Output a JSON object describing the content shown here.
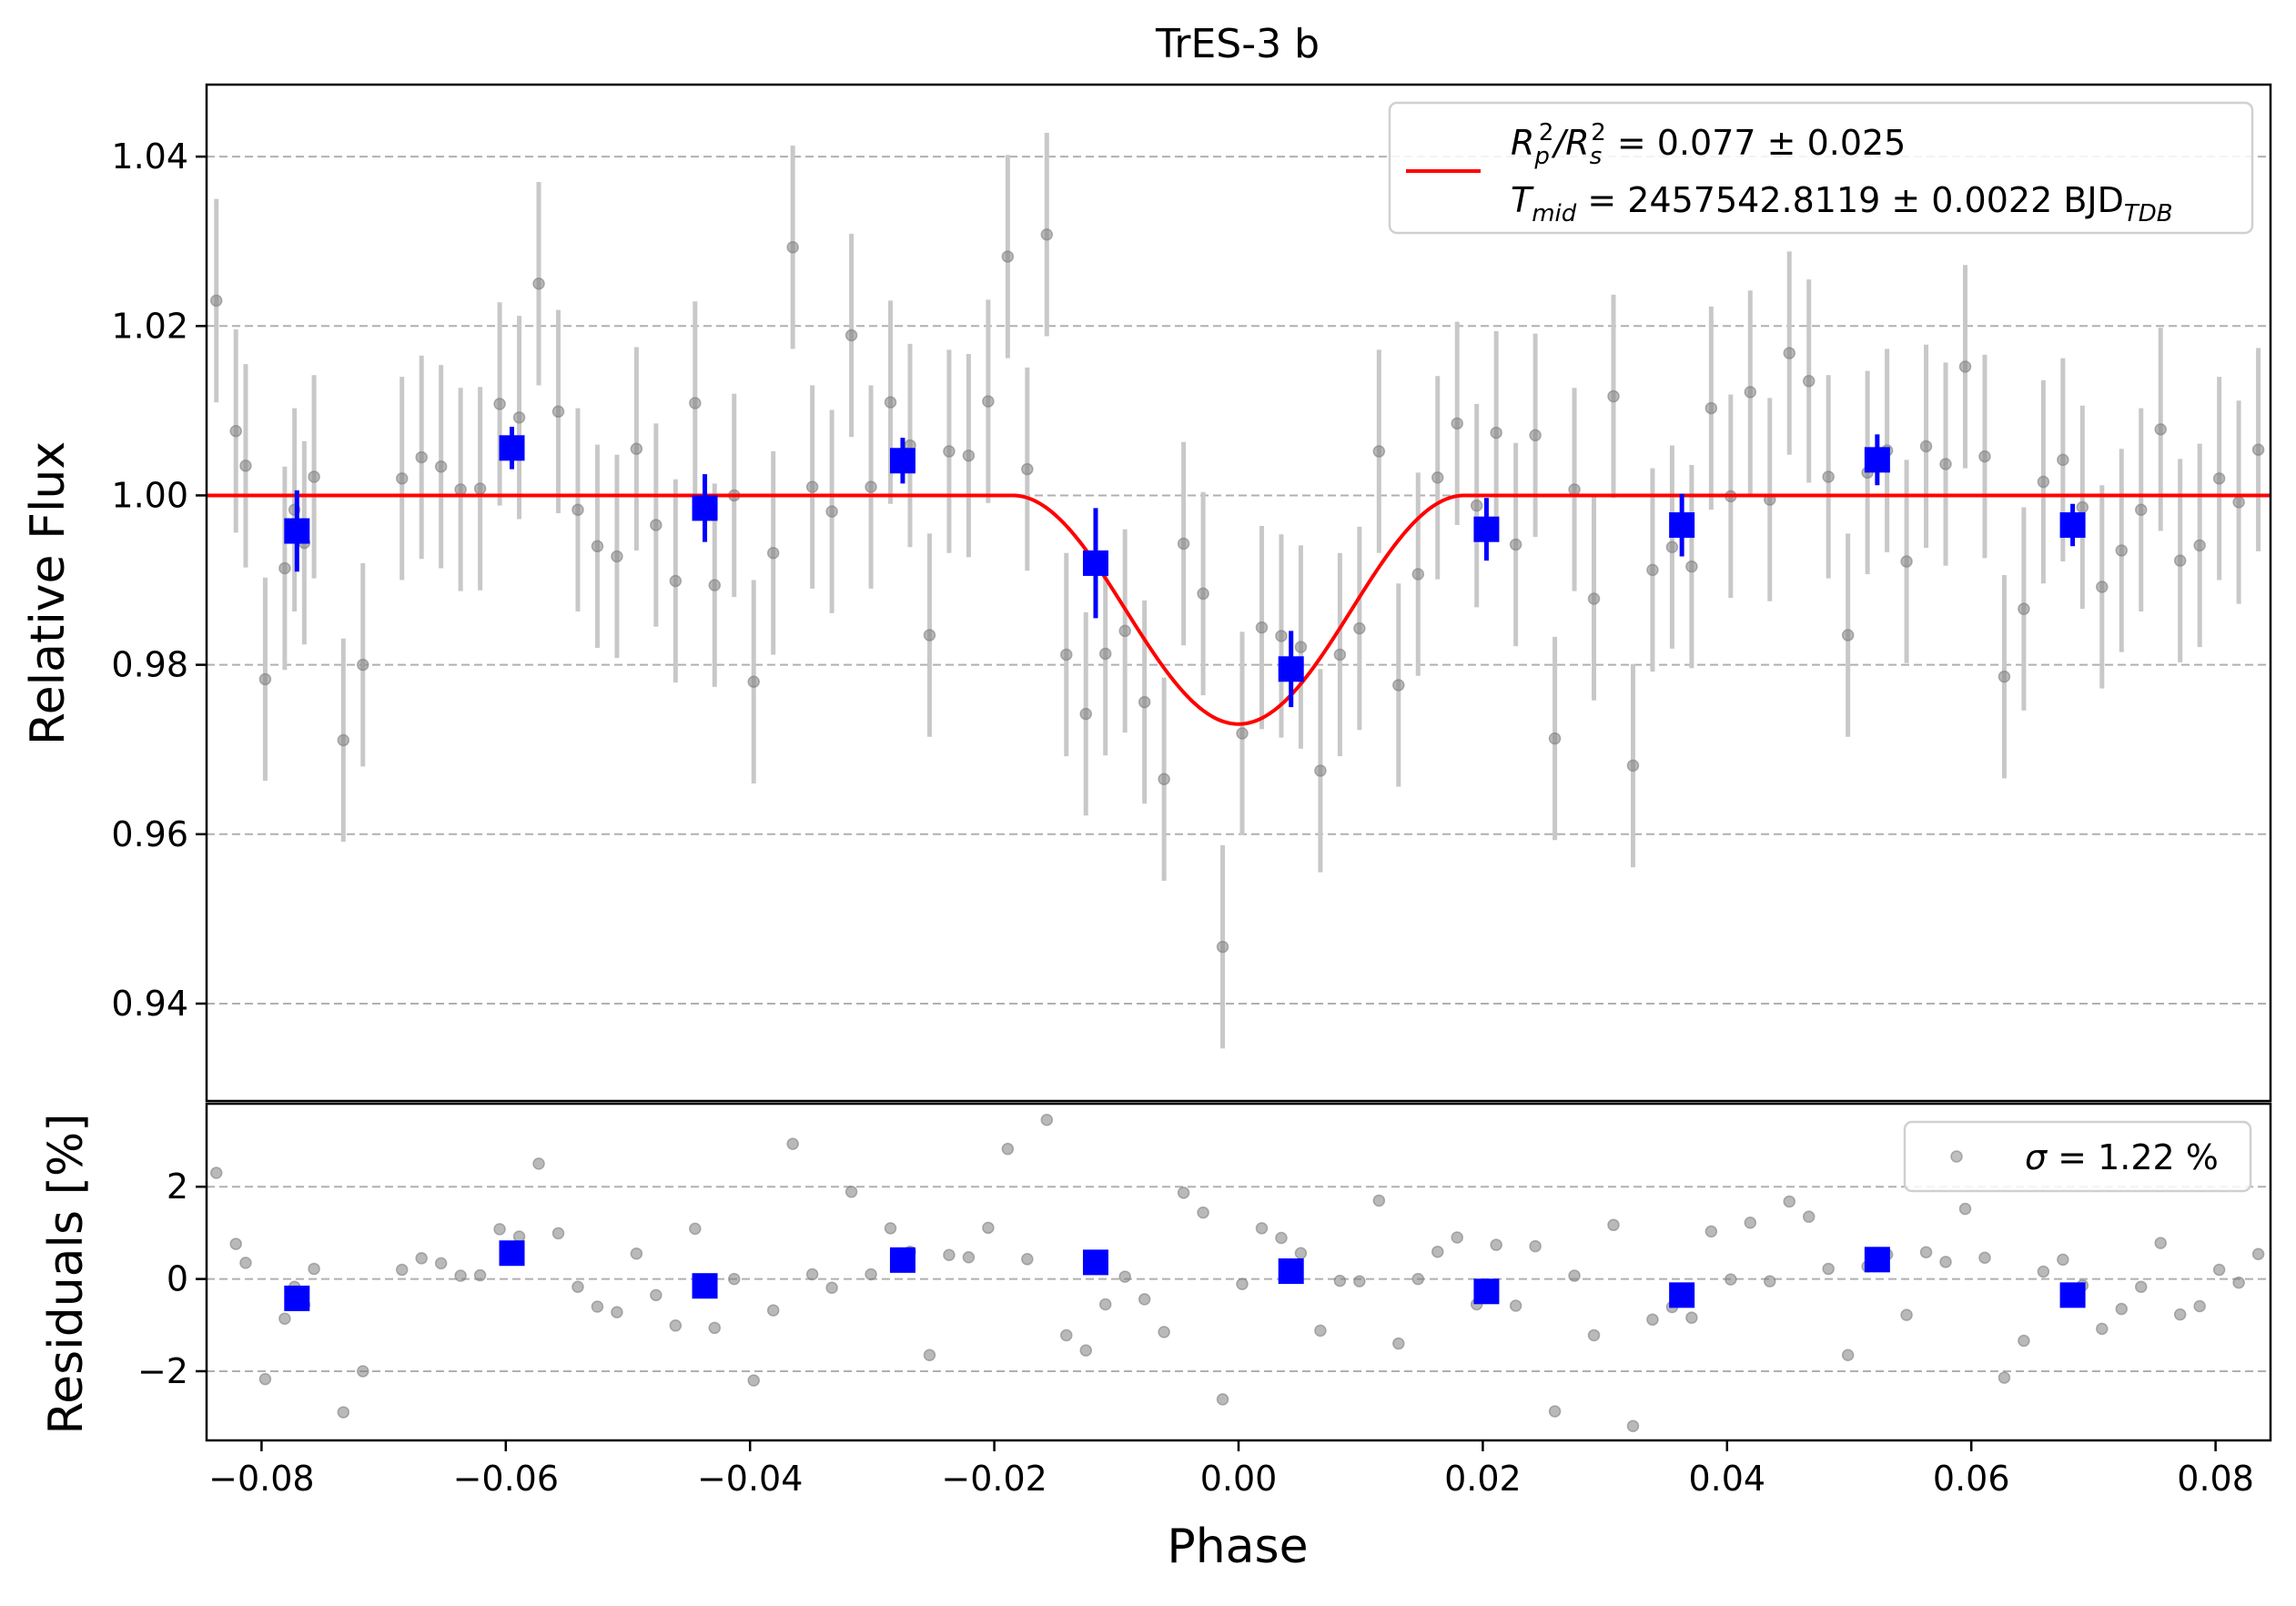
{
  "chart_data": [
    {
      "panel": "light-curve",
      "type": "scatter",
      "title": "TrES-3 b",
      "ylabel": "Relative Flux",
      "xlim": [
        -0.0845,
        0.0845
      ],
      "ylim": [
        0.9285,
        1.0485
      ],
      "grid": "horizontal dashed",
      "yticks": [
        0.94,
        0.96,
        0.98,
        1.0,
        1.02,
        1.04
      ],
      "ytick_labels": [
        "0.94",
        "0.96",
        "0.98",
        "1.00",
        "1.02",
        "1.04"
      ],
      "legend": {
        "placement": "upper-right",
        "line1": {
          "base": "R",
          "sub1": "p",
          "sup1": "2",
          "slash": "/R",
          "sub2": "s",
          "sup2": "2",
          "value": " = 0.077 ± 0.025"
        },
        "line2": {
          "base": "T",
          "sub": "mid",
          "value": " = 2457542.8119 ± 0.0022 BJD",
          "unit_sub": "TDB"
        }
      },
      "model": {
        "depth": 0.027,
        "half_duration": 0.0185,
        "color": "#ff0000"
      },
      "raw_points": [
        [
          -0.0837,
          1.023,
          0.012
        ],
        [
          -0.0821,
          1.0076,
          0.012
        ],
        [
          -0.0813,
          1.0035,
          0.012
        ],
        [
          -0.0797,
          0.9783,
          0.012
        ],
        [
          -0.0781,
          0.9914,
          0.012
        ],
        [
          -0.0773,
          0.9983,
          0.012
        ],
        [
          -0.0765,
          0.9944,
          0.012
        ],
        [
          -0.0757,
          1.0022,
          0.012
        ],
        [
          -0.0733,
          0.9711,
          0.012
        ],
        [
          -0.0717,
          0.98,
          0.012
        ],
        [
          -0.0685,
          1.002,
          0.012
        ],
        [
          -0.0669,
          1.0045,
          0.012
        ],
        [
          -0.0653,
          1.0034,
          0.012
        ],
        [
          -0.0637,
          1.0007,
          0.012
        ],
        [
          -0.0621,
          1.0008,
          0.012
        ],
        [
          -0.0605,
          1.0108,
          0.012
        ],
        [
          -0.0589,
          1.0092,
          0.012
        ],
        [
          -0.0573,
          1.025,
          0.012
        ],
        [
          -0.0557,
          1.0099,
          0.012
        ],
        [
          -0.0541,
          0.9983,
          0.012
        ],
        [
          -0.0525,
          0.994,
          0.012
        ],
        [
          -0.0509,
          0.9928,
          0.012
        ],
        [
          -0.0493,
          1.0055,
          0.012
        ],
        [
          -0.0477,
          0.9965,
          0.012
        ],
        [
          -0.0461,
          0.9899,
          0.012
        ],
        [
          -0.0445,
          1.0109,
          0.012
        ],
        [
          -0.0429,
          0.9894,
          0.012
        ],
        [
          -0.0413,
          1.0,
          0.012
        ],
        [
          -0.0397,
          0.978,
          0.012
        ],
        [
          -0.0381,
          0.9932,
          0.012
        ],
        [
          -0.0365,
          1.0293,
          0.012
        ],
        [
          -0.0349,
          1.001,
          0.012
        ],
        [
          -0.0333,
          0.9981,
          0.012
        ],
        [
          -0.0317,
          1.0189,
          0.012
        ],
        [
          -0.0301,
          1.001,
          0.012
        ],
        [
          -0.0285,
          1.011,
          0.012
        ],
        [
          -0.0269,
          1.0059,
          0.012
        ],
        [
          -0.0253,
          0.9835,
          0.012
        ],
        [
          -0.0237,
          1.0052,
          0.012
        ],
        [
          -0.0221,
          1.0047,
          0.012
        ],
        [
          -0.0205,
          1.0111,
          0.012
        ],
        [
          -0.0189,
          1.0282,
          0.012
        ],
        [
          -0.0173,
          1.0031,
          0.012
        ],
        [
          -0.0157,
          1.0308,
          0.012
        ],
        [
          -0.0141,
          0.9812,
          0.012
        ],
        [
          -0.0125,
          0.9742,
          0.012
        ],
        [
          -0.0109,
          0.9813,
          0.012
        ],
        [
          -0.0093,
          0.984,
          0.012
        ],
        [
          -0.0077,
          0.9756,
          0.012
        ],
        [
          -0.0061,
          0.9665,
          0.012
        ],
        [
          -0.0045,
          0.9943,
          0.012
        ],
        [
          -0.0029,
          0.9884,
          0.012
        ],
        [
          -0.0013,
          0.9467,
          0.012
        ],
        [
          0.0003,
          0.9719,
          0.012
        ],
        [
          0.0019,
          0.9844,
          0.012
        ],
        [
          0.0035,
          0.9834,
          0.012
        ],
        [
          0.0051,
          0.9821,
          0.012
        ],
        [
          0.0067,
          0.9675,
          0.012
        ],
        [
          0.0083,
          0.9812,
          0.012
        ],
        [
          0.0099,
          0.9843,
          0.012
        ],
        [
          0.0115,
          1.0052,
          0.012
        ],
        [
          0.0131,
          0.9776,
          0.012
        ],
        [
          0.0147,
          0.9907,
          0.012
        ],
        [
          0.0163,
          1.0021,
          0.012
        ],
        [
          0.0179,
          1.0085,
          0.012
        ],
        [
          0.0195,
          0.9988,
          0.012
        ],
        [
          0.0211,
          1.0074,
          0.012
        ],
        [
          0.0227,
          0.9942,
          0.012
        ],
        [
          0.0243,
          1.0071,
          0.012
        ],
        [
          0.0259,
          0.9713,
          0.012
        ],
        [
          0.0275,
          1.0007,
          0.012
        ],
        [
          0.0291,
          0.9878,
          0.012
        ],
        [
          0.0307,
          1.0117,
          0.012
        ],
        [
          0.0323,
          0.9681,
          0.012
        ],
        [
          0.0339,
          0.9912,
          0.012
        ],
        [
          0.0355,
          0.9939,
          0.012
        ],
        [
          0.0371,
          0.9916,
          0.012
        ],
        [
          0.0387,
          1.0103,
          0.012
        ],
        [
          0.0403,
          0.9999,
          0.012
        ],
        [
          0.0419,
          1.0122,
          0.012
        ],
        [
          0.0435,
          0.9995,
          0.012
        ],
        [
          0.0451,
          1.0168,
          0.012
        ],
        [
          0.0467,
          1.0135,
          0.012
        ],
        [
          0.0483,
          1.0022,
          0.012
        ],
        [
          0.0499,
          0.9835,
          0.012
        ],
        [
          0.0515,
          1.0027,
          0.012
        ],
        [
          0.0531,
          1.0053,
          0.012
        ],
        [
          0.0547,
          0.9922,
          0.012
        ],
        [
          0.0563,
          1.0058,
          0.012
        ],
        [
          0.0579,
          1.0037,
          0.012
        ],
        [
          0.0595,
          1.0152,
          0.012
        ],
        [
          0.0611,
          1.0046,
          0.012
        ],
        [
          0.0627,
          0.9786,
          0.012
        ],
        [
          0.0643,
          0.9866,
          0.012
        ],
        [
          0.0659,
          1.0016,
          0.012
        ],
        [
          0.0675,
          1.0042,
          0.012
        ],
        [
          0.0691,
          0.9986,
          0.012
        ],
        [
          0.0707,
          0.9892,
          0.012
        ],
        [
          0.0723,
          0.9935,
          0.012
        ],
        [
          0.0739,
          0.9983,
          0.012
        ],
        [
          0.0755,
          1.0078,
          0.012
        ],
        [
          0.0771,
          0.9923,
          0.012
        ],
        [
          0.0787,
          0.9941,
          0.012
        ],
        [
          0.0803,
          1.002,
          0.012
        ],
        [
          0.0819,
          0.9992,
          0.012
        ],
        [
          0.0835,
          1.0054,
          0.012
        ],
        [
          0.0851,
          1.001,
          0.012
        ]
      ],
      "binned_points": [
        [
          -0.0771,
          0.9958,
          0.0048
        ],
        [
          -0.0595,
          1.0056,
          0.0025
        ],
        [
          -0.0437,
          0.9985,
          0.004
        ],
        [
          -0.0275,
          1.0041,
          0.0027
        ],
        [
          -0.0117,
          0.992,
          0.0065
        ],
        [
          0.0043,
          0.9795,
          0.0045
        ],
        [
          0.0203,
          0.996,
          0.0037
        ],
        [
          0.0363,
          0.9965,
          0.0037
        ],
        [
          0.0523,
          1.0042,
          0.003
        ],
        [
          0.0683,
          0.9965,
          0.0025
        ]
      ]
    },
    {
      "panel": "residuals",
      "type": "scatter",
      "xlabel": "Phase",
      "ylabel": "Residuals [%]",
      "xlim": [
        -0.0845,
        0.0845
      ],
      "ylim": [
        -3.5,
        3.8
      ],
      "grid": "horizontal dashed",
      "xticks": [
        -0.08,
        -0.06,
        -0.04,
        -0.02,
        0.0,
        0.02,
        0.04,
        0.06,
        0.08
      ],
      "xtick_labels": [
        "−0.08",
        "−0.06",
        "−0.04",
        "−0.02",
        "0.00",
        "0.02",
        "0.04",
        "0.06",
        "0.08"
      ],
      "yticks": [
        -2,
        0,
        2
      ],
      "ytick_labels": [
        "−2",
        "0",
        "2"
      ],
      "legend": {
        "placement": "upper-right",
        "sigma": "σ",
        "text": " = 1.22 %"
      },
      "raw_residuals": [
        [
          -0.0837,
          2.3
        ],
        [
          -0.0821,
          0.76
        ],
        [
          -0.0813,
          0.35
        ],
        [
          -0.0797,
          -2.17
        ],
        [
          -0.0781,
          -0.86
        ],
        [
          -0.0773,
          -0.17
        ],
        [
          -0.0765,
          -0.56
        ],
        [
          -0.0757,
          0.22
        ],
        [
          -0.0733,
          -2.89
        ],
        [
          -0.0717,
          -2.0
        ],
        [
          -0.0685,
          0.2
        ],
        [
          -0.0669,
          0.45
        ],
        [
          -0.0653,
          0.34
        ],
        [
          -0.0637,
          0.07
        ],
        [
          -0.0621,
          0.08
        ],
        [
          -0.0605,
          1.08
        ],
        [
          -0.0589,
          0.92
        ],
        [
          -0.0573,
          2.5
        ],
        [
          -0.0557,
          0.99
        ],
        [
          -0.0541,
          -0.17
        ],
        [
          -0.0525,
          -0.6
        ],
        [
          -0.0509,
          -0.72
        ],
        [
          -0.0493,
          0.55
        ],
        [
          -0.0477,
          -0.35
        ],
        [
          -0.0461,
          -1.01
        ],
        [
          -0.0445,
          1.09
        ],
        [
          -0.0429,
          -1.06
        ],
        [
          -0.0413,
          0.0
        ],
        [
          -0.0397,
          -2.2
        ],
        [
          -0.0381,
          -0.68
        ],
        [
          -0.0365,
          2.93
        ],
        [
          -0.0349,
          0.1
        ],
        [
          -0.0333,
          -0.19
        ],
        [
          -0.0317,
          1.89
        ],
        [
          -0.0301,
          0.1
        ],
        [
          -0.0285,
          1.1
        ],
        [
          -0.0269,
          0.59
        ],
        [
          -0.0253,
          -1.65
        ],
        [
          -0.0237,
          0.52
        ],
        [
          -0.0221,
          0.47
        ],
        [
          -0.0205,
          1.11
        ],
        [
          -0.0189,
          2.82
        ],
        [
          -0.0173,
          0.43
        ],
        [
          -0.0157,
          3.45
        ],
        [
          -0.0141,
          -1.22
        ],
        [
          -0.0125,
          -1.55
        ],
        [
          -0.0109,
          -0.55
        ],
        [
          -0.0093,
          0.05
        ],
        [
          -0.0077,
          -0.44
        ],
        [
          -0.0061,
          -1.15
        ],
        [
          -0.0045,
          1.87
        ],
        [
          -0.0029,
          1.44
        ],
        [
          -0.0013,
          -2.61
        ],
        [
          0.0003,
          -0.11
        ],
        [
          0.0019,
          1.1
        ],
        [
          0.0035,
          0.89
        ],
        [
          0.0051,
          0.56
        ],
        [
          0.0067,
          -1.12
        ],
        [
          0.0083,
          -0.04
        ],
        [
          0.0099,
          -0.05
        ],
        [
          0.0115,
          1.7
        ],
        [
          0.0131,
          -1.4
        ],
        [
          0.0147,
          0.0
        ],
        [
          0.0163,
          0.59
        ],
        [
          0.0179,
          0.9
        ],
        [
          0.0195,
          -0.55
        ],
        [
          0.0211,
          0.74
        ],
        [
          0.0227,
          -0.58
        ],
        [
          0.0243,
          0.71
        ],
        [
          0.0259,
          -2.87
        ],
        [
          0.0275,
          0.07
        ],
        [
          0.0291,
          -1.22
        ],
        [
          0.0307,
          1.17
        ],
        [
          0.0323,
          -3.19
        ],
        [
          0.0339,
          -0.88
        ],
        [
          0.0355,
          -0.61
        ],
        [
          0.0371,
          -0.84
        ],
        [
          0.0387,
          1.03
        ],
        [
          0.0403,
          -0.01
        ],
        [
          0.0419,
          1.22
        ],
        [
          0.0435,
          -0.05
        ],
        [
          0.0451,
          1.68
        ],
        [
          0.0467,
          1.35
        ],
        [
          0.0483,
          0.22
        ],
        [
          0.0499,
          -1.65
        ],
        [
          0.0515,
          0.27
        ],
        [
          0.0531,
          0.53
        ],
        [
          0.0547,
          -0.78
        ],
        [
          0.0563,
          0.58
        ],
        [
          0.0579,
          0.37
        ],
        [
          0.0595,
          1.52
        ],
        [
          0.0611,
          0.46
        ],
        [
          0.0627,
          -2.14
        ],
        [
          0.0643,
          -1.34
        ],
        [
          0.0659,
          0.16
        ],
        [
          0.0675,
          0.42
        ],
        [
          0.0691,
          -0.14
        ],
        [
          0.0707,
          -1.08
        ],
        [
          0.0723,
          -0.65
        ],
        [
          0.0739,
          -0.17
        ],
        [
          0.0755,
          0.78
        ],
        [
          0.0771,
          -0.77
        ],
        [
          0.0787,
          -0.59
        ],
        [
          0.0803,
          0.2
        ],
        [
          0.0819,
          -0.08
        ],
        [
          0.0835,
          0.54
        ],
        [
          0.0851,
          0.1
        ]
      ],
      "binned_residuals": [
        [
          -0.0771,
          -0.42
        ],
        [
          -0.0595,
          0.56
        ],
        [
          -0.0437,
          -0.15
        ],
        [
          -0.0275,
          0.41
        ],
        [
          -0.0117,
          0.36
        ],
        [
          0.0043,
          0.17
        ],
        [
          0.0203,
          -0.27
        ],
        [
          0.0363,
          -0.35
        ],
        [
          0.0523,
          0.42
        ],
        [
          0.0683,
          -0.35
        ]
      ]
    }
  ],
  "colors": {
    "raw": "#808080",
    "raw_err": "#c8c8c8",
    "binned": "#0000ff",
    "model": "#ff0000",
    "grid": "#b0b0b0"
  }
}
